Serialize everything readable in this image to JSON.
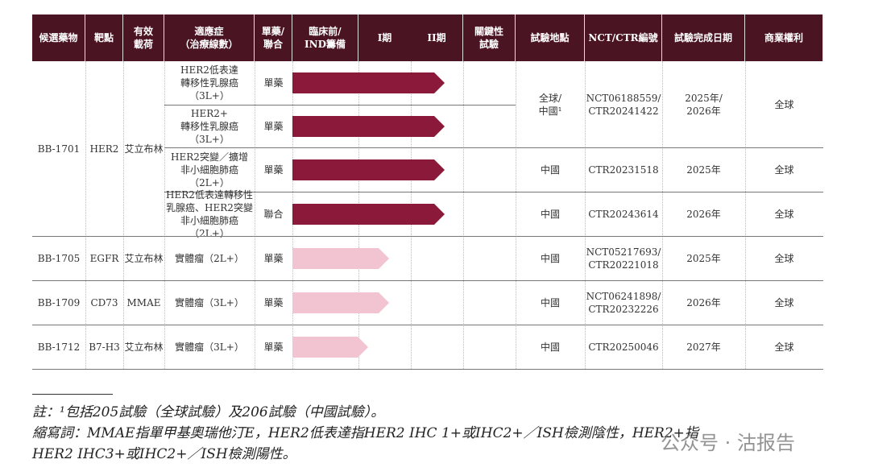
{
  "headers": [
    "候選藥物",
    "靶點",
    "有效\n載荷",
    "適應症\n（治療線數）",
    "單藥/\n聯合",
    "臨床前/\nIND籌備",
    "I期",
    "II期",
    "關鍵性\n試驗",
    "試驗地點",
    "NCT/CTR編號",
    "試驗完成日期",
    "商業權利"
  ],
  "rows": [
    {
      "drug": "BB-1701",
      "target": "HER2",
      "payload": "艾立布林",
      "sub": [
        {
          "indication": "HER2低表達\n轉移性乳腺癌\n（3L+）",
          "mode": "單藥",
          "stage": "II期"
        },
        {
          "indication": "HER2+\n轉移性乳腺癌\n（3L+）",
          "mode": "單藥",
          "stage": "II期"
        },
        {
          "indication": "HER2突變／擴增\n非小細胞肺癌\n（2L+）",
          "mode": "單藥",
          "stage": "II期",
          "site": "中國",
          "id": "CTR20231518",
          "date": "2025年",
          "rights": "全球"
        },
        {
          "indication": "HER2低表達轉移性\n乳腺癌、HER2突變\n非小細胞肺癌（2L+）",
          "mode": "聯合",
          "stage": "II期",
          "site": "中國",
          "id": "CTR20243614",
          "date": "2026年",
          "rights": "全球"
        }
      ],
      "shared": {
        "site": "全球/\n中國¹",
        "id": "NCT06188559/\nCTR20241422",
        "date": "2025年/\n2026年",
        "rights": "全球"
      }
    },
    {
      "drug": "BB-1705",
      "target": "EGFR",
      "payload": "艾立布林",
      "indication": "實體瘤（2L+）",
      "mode": "單藥",
      "stage": "I期",
      "site": "中國",
      "id": "NCT05217693/\nCTR20221018",
      "date": "2025年",
      "rights": "全球"
    },
    {
      "drug": "BB-1709",
      "target": "CD73",
      "payload": "MMAE",
      "indication": "實體瘤（3L+）",
      "mode": "單藥",
      "stage": "I期",
      "site": "中國",
      "id": "NCT06241898/\nCTR20232226",
      "date": "2026年",
      "rights": "全球"
    },
    {
      "drug": "BB-1712",
      "target": "B7-H3",
      "payload": "艾立布林",
      "indication": "實體瘤（3L+）",
      "mode": "單藥",
      "stage": "I期 (early)",
      "site": "中國",
      "id": "CTR20250046",
      "date": "2027年",
      "rights": "全球"
    }
  ],
  "colors": {
    "header": "#4a1422",
    "bar_dark": "#8b1a3a",
    "bar_light": "#f2c4d2"
  },
  "footnote": {
    "note": "註：¹包括205試驗（全球試驗）及206試驗（中國試驗）。",
    "abbr1": "縮寫詞：MMAE指單甲基奧瑞他汀E，HER2低表達指HER2 IHC 1+或IHC2+／ISH檢測陰性，HER2+指",
    "abbr2": "HER2 IHC3+或IHC2+／ISH檢測陽性。"
  },
  "watermark": "公众号 · 沽报告"
}
